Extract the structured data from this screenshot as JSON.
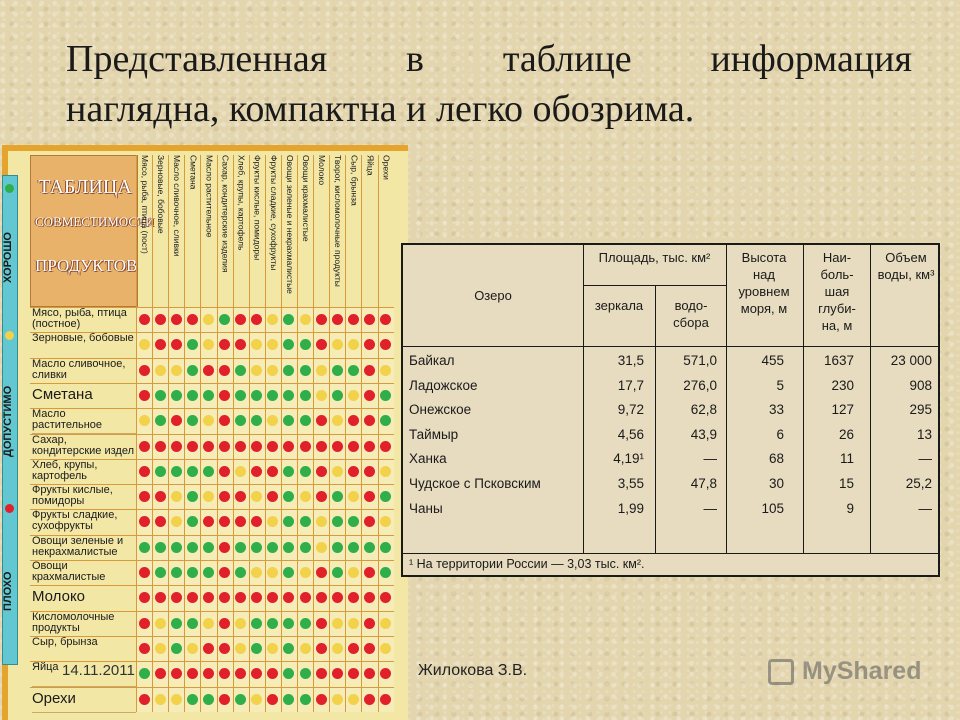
{
  "title": {
    "line1": "Представленная в таблице информация",
    "line2": "наглядна, компактна и легко обозрима."
  },
  "compat_chart": {
    "heading": [
      "ТАБЛИЦА",
      "СОВМЕСТИМОСТИ",
      "ПРОДУКТОВ"
    ],
    "legend": [
      "ХОРОШО",
      "ДОПУСТИМО",
      "ПЛОХО"
    ],
    "legend_colors": {
      "good": "#2fae4a",
      "ok": "#f2d24a",
      "bad": "#e0202a"
    },
    "columns": [
      "Мясо, рыба, птица (пост)",
      "Зерновые, бобовые",
      "Масло сливочное, сливки",
      "Сметана",
      "Масло растительное",
      "Сахар, кондитерские изделия",
      "Хлеб, крупы, картофель",
      "Фрукты кислые, помидоры",
      "Фрукты сладкие, сухофрукты",
      "Овощи зеленые и некрахмалистые",
      "Овощи крахмалистые",
      "Молоко",
      "Творог, кисломолочные продукты",
      "Сыр, брынза",
      "Яйца",
      "Орехи"
    ],
    "rows": [
      "Мясо, рыба, птица (постное)",
      "Зерновые, бобовые",
      "Масло сливочное, сливки",
      "Сметана",
      "Масло растительное",
      "Сахар, кондитерские издел",
      "Хлеб, крупы, картофель",
      "Фрукты кислые, помидоры",
      "Фрукты сладкие, сухофрукты",
      "Овощи зеленые и некрахмалистые",
      "Овощи крахмалистые",
      "Молоко",
      "Кисломолочные продукты",
      "Сыр, брынза",
      "Яйца",
      "Орехи"
    ],
    "matrix": [
      "RRRRYGRRYGYRRRRR",
      "YRRGYRRYYGGRYYRR",
      "RYYGRRGYYGGYGGRY",
      "RGGGGRGGGGGYGYRG",
      "YGRGYRGGYGGRYRRG",
      "RRRRRRRRRRRRRRRR",
      "RGGGGRYRRGGRYRRY",
      "RRYGYRRYRGYRGYRG",
      "RRYGRRRRYGGYGGRY",
      "GGGGGRGGGGGYGGGG",
      "RGGGGRGYYGYRGYRG",
      "RRRRRRRRRRRRRRRR",
      "RYGGYRYGGGGRYYRY",
      "RYGYRRYGYGYRYRRY",
      "GRRRRRRRRGGRRRRR",
      "RYYGGRGYRGGRYYRR"
    ]
  },
  "lake_table": {
    "header": {
      "lake": "Озеро",
      "area": "Площадь, тыс. км²",
      "mirror": "зеркала",
      "basin": "водо-сбора",
      "altitude": "Высота над уровнем моря, м",
      "depth": "Наи-боль-шая глуби-на, м",
      "volume": "Объем воды, км³"
    },
    "rows": [
      {
        "name": "Байкал",
        "mirror": "31,5",
        "basin": "571,0",
        "altitude": "455",
        "depth": "1637",
        "volume": "23 000"
      },
      {
        "name": "Ладожское",
        "mirror": "17,7",
        "basin": "276,0",
        "altitude": "5",
        "depth": "230",
        "volume": "908"
      },
      {
        "name": "Онежское",
        "mirror": "9,72",
        "basin": "62,8",
        "altitude": "33",
        "depth": "127",
        "volume": "295"
      },
      {
        "name": "Таймыр",
        "mirror": "4,56",
        "basin": "43,9",
        "altitude": "6",
        "depth": "26",
        "volume": "13"
      },
      {
        "name": "Ханка",
        "mirror": "4,19¹",
        "basin": "—",
        "altitude": "68",
        "depth": "11",
        "volume": "—"
      },
      {
        "name": "Чудское с Псковским",
        "mirror": "3,55",
        "basin": "47,8",
        "altitude": "30",
        "depth": "15",
        "volume": "25,2"
      },
      {
        "name": "Чаны",
        "mirror": "1,99",
        "basin": "—",
        "altitude": "105",
        "depth": "9",
        "volume": "—"
      }
    ],
    "footnote": "¹ На территории России — 3,03 тыс. км²."
  },
  "footer": {
    "date": "14.11.2011",
    "author": "Жилокова З.В.",
    "watermark": "MyShared"
  }
}
